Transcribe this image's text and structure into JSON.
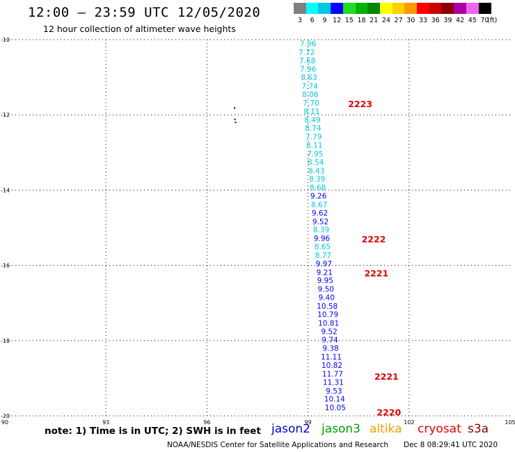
{
  "header": {
    "title": "12:00 – 23:59 UTC 12/05/2020",
    "subtitle": "12 hour collection of altimeter wave heights"
  },
  "color_scale": {
    "unit": "(ft)",
    "bins": [
      {
        "label": "3",
        "color": "#808080"
      },
      {
        "label": "6",
        "color": "#00ffff"
      },
      {
        "label": "9",
        "color": "#00c8e0"
      },
      {
        "label": "12",
        "color": "#0000ff"
      },
      {
        "label": "15",
        "color": "#22dd22"
      },
      {
        "label": "18",
        "color": "#00b400"
      },
      {
        "label": "21",
        "color": "#008800"
      },
      {
        "label": "24",
        "color": "#ffff00"
      },
      {
        "label": "27",
        "color": "#ffd000"
      },
      {
        "label": "30",
        "color": "#ff9900"
      },
      {
        "label": "33",
        "color": "#ff0000"
      },
      {
        "label": "36",
        "color": "#cc0000"
      },
      {
        "label": "39",
        "color": "#880000"
      },
      {
        "label": "42",
        "color": "#aa00aa"
      },
      {
        "label": "45",
        "color": "#ee66ee"
      },
      {
        "label": "70",
        "color": "#000000"
      }
    ]
  },
  "chart_data": {
    "type": "scatter",
    "xlim": [
      90,
      105
    ],
    "ylim": [
      -20,
      -10
    ],
    "x_ticks": [
      "90",
      "93",
      "96",
      "99",
      "102",
      "105"
    ],
    "y_ticks": [
      "-10",
      "-12",
      "-14",
      "-16",
      "-18",
      "-20"
    ],
    "grid": true,
    "points": [
      {
        "lon": 99.0,
        "lat": -10.1,
        "label": "7.96",
        "color": "#00c8e0"
      },
      {
        "lon": 98.96,
        "lat": -10.33,
        "label": "7.72",
        "color": "#00c8e0"
      },
      {
        "lon": 98.98,
        "lat": -10.55,
        "label": "7.68",
        "color": "#00c8e0"
      },
      {
        "lon": 99.0,
        "lat": -10.78,
        "label": "7.96",
        "color": "#00c8e0"
      },
      {
        "lon": 99.03,
        "lat": -11.0,
        "label": "8.63",
        "color": "#00c8e0"
      },
      {
        "lon": 99.05,
        "lat": -11.23,
        "label": "7.74",
        "color": "#00c8e0"
      },
      {
        "lon": 99.07,
        "lat": -11.45,
        "label": "8.06",
        "color": "#00c8e0"
      },
      {
        "lon": 99.09,
        "lat": -11.68,
        "label": "7.70",
        "color": "#00c8e0"
      },
      {
        "lon": 99.11,
        "lat": -11.9,
        "label": "8.11",
        "color": "#00c8e0"
      },
      {
        "lon": 99.13,
        "lat": -12.13,
        "label": "8.49",
        "color": "#00c8e0"
      },
      {
        "lon": 99.15,
        "lat": -12.35,
        "label": "8.74",
        "color": "#00c8e0"
      },
      {
        "lon": 99.17,
        "lat": -12.58,
        "label": "7.79",
        "color": "#00c8e0"
      },
      {
        "lon": 99.19,
        "lat": -12.8,
        "label": "8.11",
        "color": "#00c8e0"
      },
      {
        "lon": 99.21,
        "lat": -13.03,
        "label": "7.95",
        "color": "#00c8e0"
      },
      {
        "lon": 99.23,
        "lat": -13.25,
        "label": "8.54",
        "color": "#00c8e0"
      },
      {
        "lon": 99.25,
        "lat": -13.48,
        "label": "8.43",
        "color": "#00c8e0"
      },
      {
        "lon": 99.27,
        "lat": -13.7,
        "label": "8.39",
        "color": "#00c8e0"
      },
      {
        "lon": 99.29,
        "lat": -13.93,
        "label": "8.68",
        "color": "#00c8e0"
      },
      {
        "lon": 99.31,
        "lat": -14.15,
        "label": "9.26",
        "color": "#0000ff"
      },
      {
        "lon": 99.33,
        "lat": -14.38,
        "label": "8.67",
        "color": "#00c8e0"
      },
      {
        "lon": 99.35,
        "lat": -14.6,
        "label": "9.62",
        "color": "#0000ff"
      },
      {
        "lon": 99.37,
        "lat": -14.83,
        "label": "9.52",
        "color": "#0000ff"
      },
      {
        "lon": 99.39,
        "lat": -15.05,
        "label": "8.39",
        "color": "#00c8e0"
      },
      {
        "lon": 99.41,
        "lat": -15.28,
        "label": "9.96",
        "color": "#0000ff"
      },
      {
        "lon": 99.43,
        "lat": -15.5,
        "label": "8.65",
        "color": "#00c8e0"
      },
      {
        "lon": 99.45,
        "lat": -15.73,
        "label": "8.77",
        "color": "#00c8e0"
      },
      {
        "lon": 99.47,
        "lat": -15.95,
        "label": "9.97",
        "color": "#0000ff"
      },
      {
        "lon": 99.49,
        "lat": -16.18,
        "label": "9.21",
        "color": "#0000ff"
      },
      {
        "lon": 99.51,
        "lat": -16.4,
        "label": "9.95",
        "color": "#0000ff"
      },
      {
        "lon": 99.53,
        "lat": -16.63,
        "label": "9.50",
        "color": "#0000ff"
      },
      {
        "lon": 99.55,
        "lat": -16.85,
        "label": "9.40",
        "color": "#0000ff"
      },
      {
        "lon": 99.57,
        "lat": -17.08,
        "label": "10.58",
        "color": "#0000ff"
      },
      {
        "lon": 99.59,
        "lat": -17.3,
        "label": "10.79",
        "color": "#0000ff"
      },
      {
        "lon": 99.61,
        "lat": -17.53,
        "label": "10.81",
        "color": "#0000ff"
      },
      {
        "lon": 99.63,
        "lat": -17.75,
        "label": "9.52",
        "color": "#0000ff"
      },
      {
        "lon": 99.65,
        "lat": -17.98,
        "label": "9.74",
        "color": "#0000ff"
      },
      {
        "lon": 99.67,
        "lat": -18.2,
        "label": "9.38",
        "color": "#0000ff"
      },
      {
        "lon": 99.69,
        "lat": -18.43,
        "label": "11.11",
        "color": "#0000ff"
      },
      {
        "lon": 99.71,
        "lat": -18.65,
        "label": "10.82",
        "color": "#0000ff"
      },
      {
        "lon": 99.73,
        "lat": -18.88,
        "label": "11.77",
        "color": "#0000ff"
      },
      {
        "lon": 99.75,
        "lat": -19.1,
        "label": "11.31",
        "color": "#0000ff"
      },
      {
        "lon": 99.77,
        "lat": -19.33,
        "label": "9.53",
        "color": "#0000ff"
      },
      {
        "lon": 99.79,
        "lat": -19.55,
        "label": "10.14",
        "color": "#0000ff"
      },
      {
        "lon": 99.81,
        "lat": -19.78,
        "label": "10.05",
        "color": "#0000ff"
      }
    ],
    "time_annotations": [
      {
        "lon": 100.55,
        "lat": -11.7,
        "label": "2223"
      },
      {
        "lon": 100.95,
        "lat": -15.3,
        "label": "2222"
      },
      {
        "lon": 101.03,
        "lat": -16.2,
        "label": "2221"
      },
      {
        "lon": 101.33,
        "lat": -18.95,
        "label": "2221"
      },
      {
        "lon": 101.4,
        "lat": -19.9,
        "label": "2220"
      }
    ],
    "land_marks": [
      {
        "lon": 96.85,
        "lat": -12.2
      },
      {
        "lon": 96.83,
        "lat": -12.12
      },
      {
        "lon": 96.82,
        "lat": -11.82
      }
    ]
  },
  "footer": {
    "note": "note:  1) Time is in UTC;  2) SWH is in feet",
    "missions": [
      {
        "name": "jason2",
        "color": "#0000cc"
      },
      {
        "name": "jason3",
        "color": "#00a000"
      },
      {
        "name": "altika",
        "color": "#ff9900"
      },
      {
        "name": "cryosat",
        "color": "#dd0000"
      },
      {
        "name": "s3a",
        "color": "#880000"
      }
    ],
    "credit": "NOAA/NESDIS Center for Satellite Applications and Research",
    "timestamp": "Dec  8 08:29:41 UTC 2020"
  }
}
